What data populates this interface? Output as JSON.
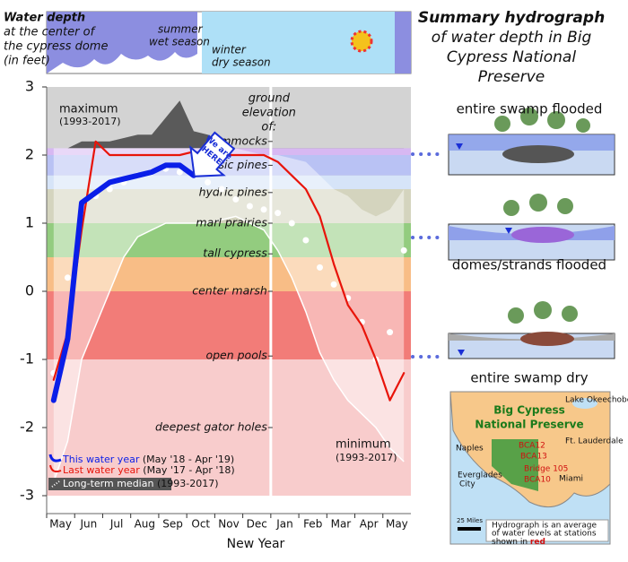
{
  "header": {
    "label_lines": [
      "Water depth",
      "at the center of",
      "the cypress dome",
      "(in feet)"
    ],
    "summer": [
      "summer",
      "wet season"
    ],
    "winter": [
      "winter",
      "dry season"
    ]
  },
  "title_lines": [
    "Summary hydrograph",
    "of water depth in Big",
    "Cypress National",
    "Preserve"
  ],
  "chart_data": {
    "type": "line",
    "categories": [
      "May",
      null,
      "Jun",
      null,
      "Jul",
      null,
      "Aug",
      null,
      "Sep",
      null,
      "Oct",
      null,
      "Nov",
      null,
      "Dec",
      null,
      "Jan",
      null,
      "Feb",
      null,
      "Mar",
      null,
      "Apr",
      null,
      "May",
      null
    ],
    "x_label": "New Year",
    "ylim": [
      -3,
      3
    ],
    "yticks": [
      -3,
      -2,
      -1,
      0,
      1,
      2,
      3
    ],
    "grid": false,
    "series": [
      {
        "name": "This water year",
        "period": "(May '18 - Apr '19)",
        "color": "#0a1ee8",
        "style": "thick",
        "values": [
          -1.6,
          -0.7,
          1.3,
          1.45,
          1.6,
          1.65,
          1.7,
          1.75,
          1.85,
          1.85,
          1.7,
          null,
          null,
          null,
          null,
          null,
          null,
          null,
          null,
          null,
          null,
          null,
          null,
          null,
          null,
          null
        ]
      },
      {
        "name": "Last water year",
        "period": "(May '17 - Apr '18)",
        "color": "#e8140a",
        "style": "thin",
        "values": [
          -1.3,
          -0.6,
          0.9,
          2.2,
          2.0,
          2.0,
          2.0,
          2.0,
          2.0,
          2.0,
          2.05,
          2.0,
          2.0,
          2.0,
          2.0,
          2.0,
          1.9,
          1.7,
          1.5,
          1.1,
          0.4,
          -0.2,
          -0.5,
          -1.0,
          -1.6,
          -1.2
        ]
      },
      {
        "name": "Long-term median",
        "period": "(1993-2017)",
        "color": "#ffffff",
        "style": "dots",
        "values": [
          -1.2,
          0.2,
          1.2,
          1.4,
          1.5,
          1.6,
          1.7,
          1.75,
          1.8,
          1.75,
          1.7,
          1.6,
          1.5,
          1.35,
          1.25,
          1.2,
          1.15,
          1.0,
          0.75,
          0.35,
          0.1,
          -0.1,
          -0.45,
          -1.0,
          -0.6,
          0.6
        ]
      }
    ],
    "maximum": {
      "label": "maximum",
      "period": "(1993-2017)",
      "color": "#5a5a5a",
      "values": [
        2.1,
        2.1,
        2.2,
        2.2,
        2.2,
        2.25,
        2.3,
        2.3,
        2.55,
        2.8,
        2.35,
        2.3,
        2.2,
        2.1,
        2.05,
        2.0,
        2.0,
        1.95,
        1.9,
        1.7,
        1.5,
        1.4,
        1.2,
        1.1,
        1.2,
        1.5
      ]
    },
    "minimum": {
      "label": "minimum",
      "period": "(1993-2017)",
      "color": "#ffffff",
      "values": [
        -2.8,
        -2.2,
        -1.0,
        -0.5,
        0.0,
        0.5,
        0.8,
        0.9,
        1.0,
        1.0,
        1.0,
        1.0,
        1.05,
        1.1,
        1.0,
        0.9,
        0.6,
        0.2,
        -0.3,
        -0.9,
        -1.3,
        -1.6,
        -1.8,
        -2.0,
        -2.3,
        -2.5
      ]
    },
    "bands": [
      {
        "from": 2.0,
        "to": 2.1,
        "color": "#d7b8f2"
      },
      {
        "from": 1.7,
        "to": 2.0,
        "color": "#b9c2f4"
      },
      {
        "from": 1.5,
        "to": 1.7,
        "color": "#d6e4f8"
      },
      {
        "from": 1.0,
        "to": 1.5,
        "color": "#d4d4be"
      },
      {
        "from": 0.5,
        "to": 1.0,
        "color": "#93cc7f"
      },
      {
        "from": 0.0,
        "to": 0.5,
        "color": "#f8bd86"
      },
      {
        "from": -1.0,
        "to": 0.0,
        "color": "#f27c78"
      },
      {
        "from": -3.0,
        "to": -1.0,
        "color": "#f8cccc"
      }
    ],
    "elevation_title": [
      "ground",
      "elevation",
      "of:"
    ],
    "habitats": [
      {
        "label": "hammocks",
        "elevation": 2.2
      },
      {
        "label": "mesic pines",
        "elevation": 1.85
      },
      {
        "label": "hydric pines",
        "elevation": 1.45
      },
      {
        "label": "marl prairies",
        "elevation": 1.0
      },
      {
        "label": "tall cypress",
        "elevation": 0.55
      },
      {
        "label": "center marsh",
        "elevation": 0.0
      },
      {
        "label": "open pools",
        "elevation": -0.95
      },
      {
        "label": "deepest gator holes",
        "elevation": -2.0
      }
    ],
    "annotation": [
      "We are",
      "HERE"
    ]
  },
  "diagrams": [
    "entire swamp flooded",
    "domes/strands flooded",
    "entire swamp dry"
  ],
  "map": {
    "title_lines": [
      "Big Cypress",
      "National Preserve"
    ],
    "places": [
      "Lake Okeechobee",
      "Ft. Lauderdale",
      "Naples",
      "Everglades",
      "City",
      "Miami"
    ],
    "stations": [
      "BCA12",
      "BCA13",
      "Bridge 105",
      "BCA10"
    ],
    "scale": "25 Miles",
    "note_lines": [
      "Hydrograph is an average",
      "of water levels at stations",
      "shown in",
      "red"
    ]
  }
}
